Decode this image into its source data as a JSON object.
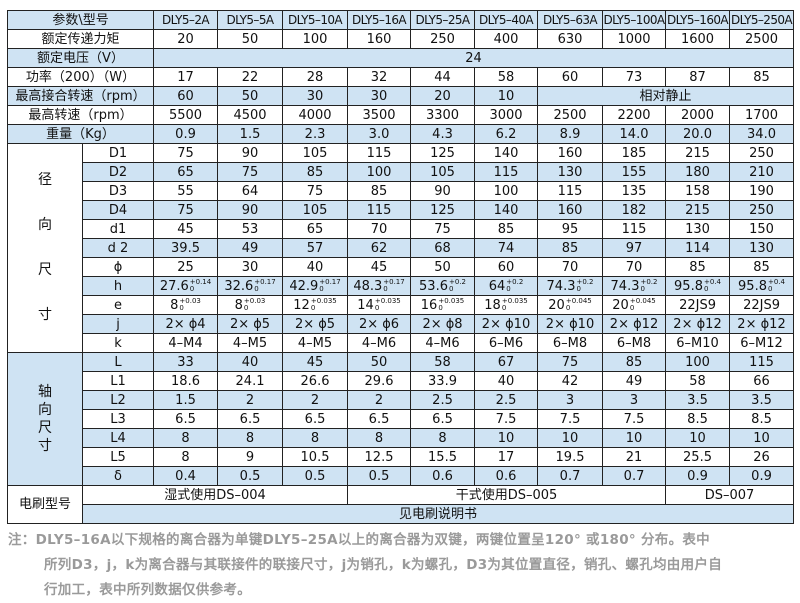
{
  "header": {
    "label": "参数\\型号",
    "models": [
      "DLY5–2A",
      "DLY5–5A",
      "DLY5–10A",
      "DLY5–16A",
      "DLY5–25A",
      "DLY5–40A",
      "DLY5–63A",
      "DLY5–100A",
      "DLY5–160A",
      "DLY5–250A"
    ]
  },
  "general": [
    {
      "label": "额定传递力矩",
      "values": [
        "20",
        "50",
        "100",
        "160",
        "250",
        "400",
        "630",
        "1000",
        "1600",
        "2500"
      ]
    },
    {
      "label": "额定电压（V）",
      "span_value": "24"
    },
    {
      "label": "功率（200）（W）",
      "values": [
        "17",
        "22",
        "28",
        "32",
        "44",
        "58",
        "60",
        "73",
        "87",
        "85"
      ]
    },
    {
      "label": "最高接合转速（rpm）",
      "values": [
        "60",
        "50",
        "30",
        "30",
        "20",
        "10"
      ],
      "span_value": "相对静止"
    },
    {
      "label": "最高转速（rpm）",
      "values": [
        "5500",
        "4500",
        "4000",
        "3500",
        "3300",
        "3000",
        "2500",
        "2200",
        "2000",
        "1700"
      ]
    },
    {
      "label": "重量（Kg）",
      "values": [
        "0.9",
        "1.5",
        "2.3",
        "3.0",
        "4.3",
        "6.2",
        "8.9",
        "14.0",
        "20.0",
        "34.0"
      ]
    }
  ],
  "radial": {
    "group_label": [
      "径",
      "向",
      "尺",
      "寸"
    ],
    "rows": [
      {
        "label": "D1",
        "values": [
          "75",
          "90",
          "105",
          "115",
          "125",
          "140",
          "160",
          "185",
          "215",
          "250"
        ]
      },
      {
        "label": "D2",
        "values": [
          "65",
          "75",
          "85",
          "100",
          "105",
          "115",
          "130",
          "155",
          "180",
          "210"
        ]
      },
      {
        "label": "D3",
        "values": [
          "55",
          "64",
          "75",
          "85",
          "90",
          "100",
          "115",
          "135",
          "158",
          "190"
        ]
      },
      {
        "label": "D4",
        "values": [
          "75",
          "90",
          "105",
          "115",
          "125",
          "140",
          "160",
          "182",
          "215",
          "250"
        ]
      },
      {
        "label": "d1",
        "values": [
          "45",
          "53",
          "65",
          "70",
          "75",
          "85",
          "95",
          "115",
          "130",
          "150"
        ]
      },
      {
        "label": "d 2",
        "values": [
          "39.5",
          "49",
          "57",
          "62",
          "68",
          "74",
          "85",
          "97",
          "114",
          "130"
        ]
      },
      {
        "label": "ϕ",
        "values": [
          "25",
          "30",
          "40",
          "45",
          "50",
          "60",
          "70",
          "70",
          "85",
          "85"
        ]
      },
      {
        "label": "h",
        "values": [
          {
            "v": "27.6",
            "up": "+0.14",
            "lo": "0"
          },
          {
            "v": "32.6",
            "up": "+0.17",
            "lo": "0"
          },
          {
            "v": "42.9",
            "up": "+0.17",
            "lo": "0"
          },
          {
            "v": "48.3",
            "up": "+0.17",
            "lo": "0"
          },
          {
            "v": "53.6",
            "up": "+0.2",
            "lo": "0"
          },
          {
            "v": "64",
            "up": "+0.2",
            "lo": "0"
          },
          {
            "v": "74.3",
            "up": "+0.2",
            "lo": "0"
          },
          {
            "v": "74.3",
            "up": "+0.2",
            "lo": "0"
          },
          {
            "v": "95.8",
            "up": "+0.4",
            "lo": "0"
          },
          {
            "v": "95.8",
            "up": "+0.4",
            "lo": "0"
          }
        ]
      },
      {
        "label": "e",
        "values": [
          {
            "v": "8",
            "up": "+0.03",
            "lo": "0"
          },
          {
            "v": "8",
            "up": "+0.03",
            "lo": "0"
          },
          {
            "v": "12",
            "up": "+0.035",
            "lo": "0"
          },
          {
            "v": "14",
            "up": "+0.035",
            "lo": "0"
          },
          {
            "v": "16",
            "up": "+0.035",
            "lo": "0"
          },
          {
            "v": "18",
            "up": "+0.035",
            "lo": "0"
          },
          {
            "v": "20",
            "up": "+0.045",
            "lo": "0"
          },
          {
            "v": "20",
            "up": "+0.045",
            "lo": "0"
          },
          "22JS9",
          "22JS9"
        ]
      },
      {
        "label": "j",
        "values": [
          "2× ϕ4",
          "2× ϕ5",
          "2× ϕ5",
          "2× ϕ6",
          "2× ϕ8",
          "2× ϕ10",
          "2× ϕ10",
          "2× ϕ12",
          "2× ϕ12",
          "2× ϕ12"
        ]
      },
      {
        "label": "k",
        "values": [
          "4–M4",
          "4–M5",
          "4–M5",
          "4–M6",
          "4–M6",
          "6–M6",
          "6–M8",
          "6–M8",
          "6–M10",
          "6–M12"
        ]
      }
    ]
  },
  "axial": {
    "group_label": [
      "轴",
      "向",
      "尺",
      "寸"
    ],
    "rows": [
      {
        "label": "L",
        "values": [
          "33",
          "40",
          "45",
          "50",
          "58",
          "67",
          "75",
          "85",
          "100",
          "115"
        ]
      },
      {
        "label": "L1",
        "values": [
          "18.6",
          "24.1",
          "26.6",
          "29.6",
          "33.9",
          "40",
          "42",
          "49",
          "58",
          "66"
        ]
      },
      {
        "label": "L2",
        "values": [
          "1.5",
          "2",
          "2",
          "2",
          "2.5",
          "2.5",
          "3",
          "3",
          "3.5",
          "3.5"
        ]
      },
      {
        "label": "L3",
        "values": [
          "6.5",
          "6.5",
          "6.5",
          "6.5",
          "6.5",
          "7.5",
          "7.5",
          "7.5",
          "8.5",
          "8.5"
        ]
      },
      {
        "label": "L4",
        "values": [
          "8",
          "8",
          "8",
          "8",
          "8",
          "10",
          "10",
          "10",
          "10",
          "10"
        ]
      },
      {
        "label": "L5",
        "values": [
          "8",
          "9",
          "10.5",
          "12.5",
          "15.5",
          "17",
          "19.5",
          "21",
          "25.5",
          "26"
        ]
      },
      {
        "label": "δ",
        "values": [
          "0.4",
          "0.5",
          "0.5",
          "0.5",
          "0.6",
          "0.6",
          "0.7",
          "0.7",
          "0.9",
          "0.9"
        ]
      }
    ]
  },
  "brush": {
    "label": "电刷型号",
    "wet": "湿式使用DS–004",
    "dry": "干式使用DS–005",
    "large": "DS–007",
    "manual": "见电刷说明书"
  },
  "note": {
    "line1": "注：DLY5–16A以下规格的离合器为单键DLY5–25A以上的离合器为双键，两键位置呈120° 或180° 分布。表中",
    "line2": "所列D3，j，k为离合器与其联接件的联接尺寸，j为销孔，k为螺孔，D3为其位置直径，销孔、螺孔均由用户自",
    "line3": "行加工，表中所列数据仅供参考。"
  },
  "colors": {
    "row_blue": "#cfe3f3",
    "border": "#222222",
    "note_text": "#9a9a9a"
  }
}
